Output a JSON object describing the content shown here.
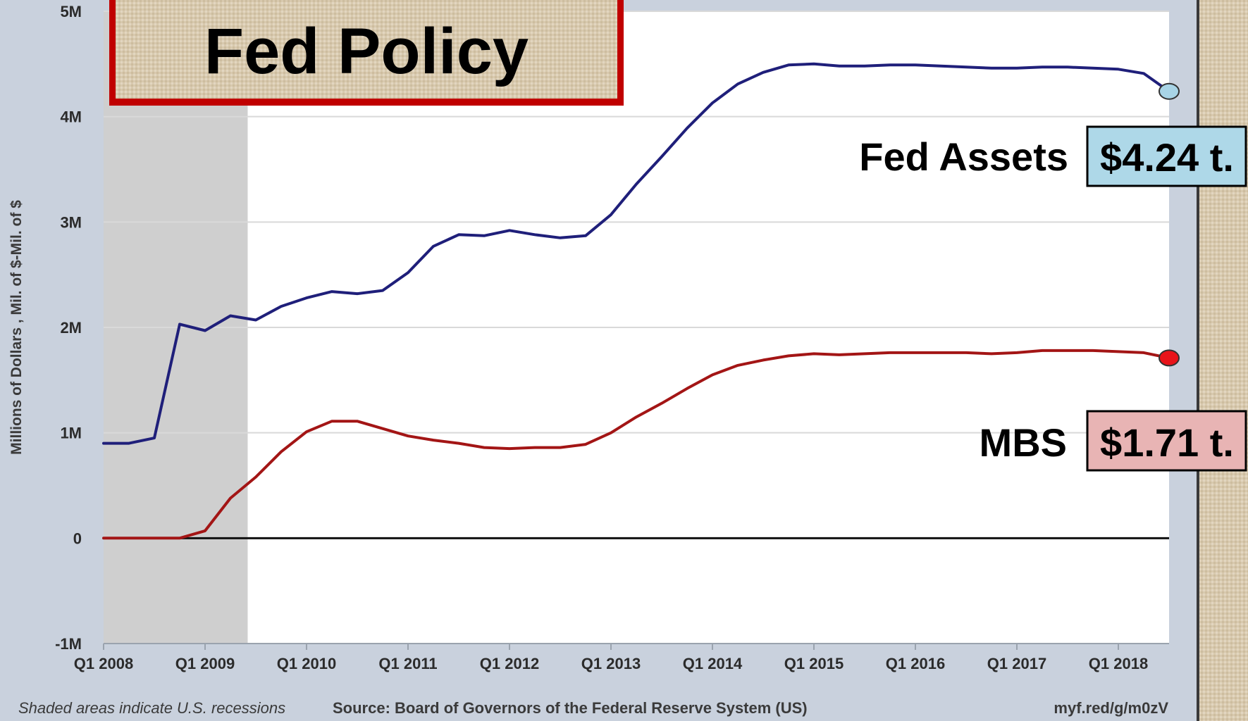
{
  "title": "Fed Policy",
  "colors": {
    "assets_line": "#1f1f7a",
    "mbs_line": "#a31515",
    "assets_marker": "#a8d4e6",
    "mbs_marker": "#e8141a",
    "assets_value_bg": "#aed8e8",
    "mbs_value_bg": "#e8b4b4",
    "title_border": "#c00000",
    "recession_shade": "#cfcfcf",
    "burlap": "#d8c9ae"
  },
  "callouts": {
    "assets": {
      "name": "Fed Assets",
      "value": "$4.24 t."
    },
    "mbs": {
      "name": "MBS",
      "value": "$1.71 t."
    }
  },
  "footer": {
    "note": "Shaded areas indicate U.S. recessions",
    "source": "Source: Board of Governors of the Federal Reserve System (US)",
    "link": "myf.red/g/m0zV"
  },
  "chart_data": {
    "type": "line",
    "ylabel": "Millions of Dollars , Mil. of $-Mil. of $",
    "xlabel": "",
    "ylim": [
      -1000000,
      5000000
    ],
    "xlim": [
      2008.0,
      2018.5
    ],
    "yticks": [
      {
        "value": 5000000,
        "label": "5M"
      },
      {
        "value": 4000000,
        "label": "4M"
      },
      {
        "value": 3000000,
        "label": "3M"
      },
      {
        "value": 2000000,
        "label": "2M"
      },
      {
        "value": 1000000,
        "label": "1M"
      },
      {
        "value": 0,
        "label": "0"
      },
      {
        "value": -1000000,
        "label": "-1M"
      }
    ],
    "xticks": [
      {
        "value": 2008,
        "label": "Q1 2008"
      },
      {
        "value": 2009,
        "label": "Q1 2009"
      },
      {
        "value": 2010,
        "label": "Q1 2010"
      },
      {
        "value": 2011,
        "label": "Q1 2011"
      },
      {
        "value": 2012,
        "label": "Q1 2012"
      },
      {
        "value": 2013,
        "label": "Q1 2013"
      },
      {
        "value": 2014,
        "label": "Q1 2014"
      },
      {
        "value": 2015,
        "label": "Q1 2015"
      },
      {
        "value": 2016,
        "label": "Q1 2016"
      },
      {
        "value": 2017,
        "label": "Q1 2017"
      },
      {
        "value": 2018,
        "label": "Q1 2018"
      }
    ],
    "recessions": [
      {
        "start": 2008.0,
        "end": 2009.42
      }
    ],
    "grid": true,
    "series": [
      {
        "key": "assets",
        "x": [
          2008.0,
          2008.25,
          2008.5,
          2008.75,
          2009.0,
          2009.25,
          2009.5,
          2009.75,
          2010.0,
          2010.25,
          2010.5,
          2010.75,
          2011.0,
          2011.25,
          2011.5,
          2011.75,
          2012.0,
          2012.25,
          2012.5,
          2012.75,
          2013.0,
          2013.25,
          2013.5,
          2013.75,
          2014.0,
          2014.25,
          2014.5,
          2014.75,
          2015.0,
          2015.25,
          2015.5,
          2015.75,
          2016.0,
          2016.25,
          2016.5,
          2016.75,
          2017.0,
          2017.25,
          2017.5,
          2017.75,
          2018.0,
          2018.25,
          2018.5
        ],
        "values": [
          900000,
          900000,
          950000,
          2030000,
          1970000,
          2110000,
          2070000,
          2200000,
          2280000,
          2340000,
          2320000,
          2350000,
          2520000,
          2770000,
          2880000,
          2870000,
          2920000,
          2880000,
          2850000,
          2870000,
          3070000,
          3360000,
          3620000,
          3890000,
          4130000,
          4310000,
          4420000,
          4490000,
          4500000,
          4480000,
          4480000,
          4490000,
          4490000,
          4480000,
          4470000,
          4460000,
          4460000,
          4470000,
          4470000,
          4460000,
          4450000,
          4410000,
          4240000
        ]
      },
      {
        "key": "mbs",
        "x": [
          2008.0,
          2008.25,
          2008.5,
          2008.75,
          2009.0,
          2009.25,
          2009.5,
          2009.75,
          2010.0,
          2010.25,
          2010.5,
          2010.75,
          2011.0,
          2011.25,
          2011.5,
          2011.75,
          2012.0,
          2012.25,
          2012.5,
          2012.75,
          2013.0,
          2013.25,
          2013.5,
          2013.75,
          2014.0,
          2014.25,
          2014.5,
          2014.75,
          2015.0,
          2015.25,
          2015.5,
          2015.75,
          2016.0,
          2016.25,
          2016.5,
          2016.75,
          2017.0,
          2017.25,
          2017.5,
          2017.75,
          2018.0,
          2018.25,
          2018.5
        ],
        "values": [
          0,
          0,
          0,
          0,
          70000,
          380000,
          580000,
          820000,
          1010000,
          1110000,
          1110000,
          1040000,
          970000,
          930000,
          900000,
          860000,
          850000,
          860000,
          860000,
          890000,
          1000000,
          1150000,
          1280000,
          1420000,
          1550000,
          1640000,
          1690000,
          1730000,
          1750000,
          1740000,
          1750000,
          1760000,
          1760000,
          1760000,
          1760000,
          1750000,
          1760000,
          1780000,
          1780000,
          1780000,
          1770000,
          1760000,
          1710000
        ]
      }
    ]
  }
}
